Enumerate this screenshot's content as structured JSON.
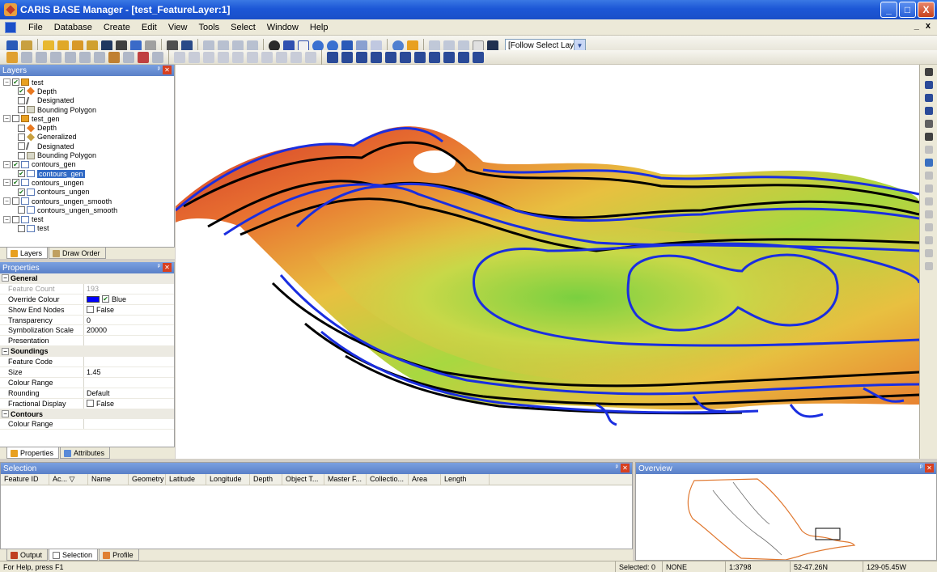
{
  "window": {
    "title": "CARIS BASE Manager - [test_FeatureLayer:1]",
    "min": "_",
    "max": "□",
    "close": "X"
  },
  "menu": {
    "items": [
      "File",
      "Database",
      "Create",
      "Edit",
      "View",
      "Tools",
      "Select",
      "Window",
      "Help"
    ],
    "mdi_min": "_",
    "mdi_close": "x"
  },
  "toolbar": {
    "follow_select": "[Follow Select Layer]"
  },
  "layers_panel": {
    "title": "Layers",
    "rows": [
      {
        "label": "test",
        "expander": "−",
        "checked": "✔",
        "icon": "db",
        "indent": 0
      },
      {
        "label": "Depth",
        "expander": "",
        "checked": "✔",
        "icon": "depth",
        "indent": 1
      },
      {
        "label": "Designated",
        "expander": "",
        "checked": "",
        "icon": "des",
        "indent": 1
      },
      {
        "label": "Bounding Polygon",
        "expander": "",
        "checked": "",
        "icon": "poly",
        "indent": 1
      },
      {
        "label": "test_gen",
        "expander": "−",
        "checked": "",
        "icon": "db",
        "indent": 0
      },
      {
        "label": "Depth",
        "expander": "",
        "checked": "",
        "icon": "depth",
        "indent": 1
      },
      {
        "label": "Generalized",
        "expander": "",
        "checked": "",
        "icon": "gen",
        "indent": 1
      },
      {
        "label": "Designated",
        "expander": "",
        "checked": "",
        "icon": "des",
        "indent": 1
      },
      {
        "label": "Bounding Polygon",
        "expander": "",
        "checked": "",
        "icon": "poly",
        "indent": 1
      },
      {
        "label": "contours_gen",
        "expander": "−",
        "checked": "✔",
        "icon": "feat",
        "indent": 0
      },
      {
        "label": "contours_gen",
        "expander": "",
        "checked": "✔",
        "icon": "feat",
        "indent": 1,
        "selected": true
      },
      {
        "label": "contours_ungen",
        "expander": "−",
        "checked": "✔",
        "icon": "feat",
        "indent": 0
      },
      {
        "label": "contours_ungen",
        "expander": "",
        "checked": "✔",
        "icon": "feat",
        "indent": 1
      },
      {
        "label": "contours_ungen_smooth",
        "expander": "−",
        "checked": "",
        "icon": "feat",
        "indent": 0
      },
      {
        "label": "contours_ungen_smooth",
        "expander": "",
        "checked": "",
        "icon": "feat",
        "indent": 1
      },
      {
        "label": "test",
        "expander": "−",
        "checked": "",
        "icon": "feat",
        "indent": 0
      },
      {
        "label": "test",
        "expander": "",
        "checked": "",
        "icon": "feat",
        "indent": 1
      }
    ],
    "tabs": [
      "Layers",
      "Draw Order"
    ]
  },
  "properties_panel": {
    "title": "Properties",
    "rows": [
      {
        "type": "section",
        "key": "General"
      },
      {
        "key": "Feature Count",
        "value": "193",
        "disabled": true
      },
      {
        "key": "Override Colour",
        "value": "Blue",
        "swatch": true,
        "check": "✔"
      },
      {
        "key": "Show End Nodes",
        "value": "False",
        "check": ""
      },
      {
        "key": "Transparency",
        "value": "0"
      },
      {
        "key": "Symbolization Scale",
        "value": "20000"
      },
      {
        "key": "Presentation",
        "value": ""
      },
      {
        "type": "section",
        "key": "Soundings"
      },
      {
        "key": "Feature Code",
        "value": ""
      },
      {
        "key": "Size",
        "value": "1.45"
      },
      {
        "key": "Colour Range",
        "value": ""
      },
      {
        "key": "Rounding",
        "value": "Default"
      },
      {
        "key": "Fractional Display",
        "value": "False",
        "check": ""
      },
      {
        "type": "section",
        "key": "Contours"
      },
      {
        "key": "Colour Range",
        "value": ""
      }
    ],
    "tabs": [
      "Properties",
      "Attributes"
    ]
  },
  "selection_panel": {
    "title": "Selection",
    "columns": [
      "Feature ID",
      "Ac...  ▽",
      "Name",
      "Geometry",
      "Latitude",
      "Longitude",
      "Depth",
      "Object T...",
      "Master F...",
      "Collectio...",
      "Area",
      "Length"
    ],
    "tabs": [
      "Output",
      "Selection",
      "Profile"
    ]
  },
  "overview_panel": {
    "title": "Overview"
  },
  "status": {
    "help": "For Help, press F1",
    "selected": "Selected: 0",
    "mode": "NONE",
    "scale": "1:3798",
    "lat": "52-47.26N",
    "lon": "129-05.45W"
  },
  "colors": {
    "contour_blue": "#1a2ee0",
    "contour_black": "#000000",
    "selection_blue": "#316ac5"
  }
}
